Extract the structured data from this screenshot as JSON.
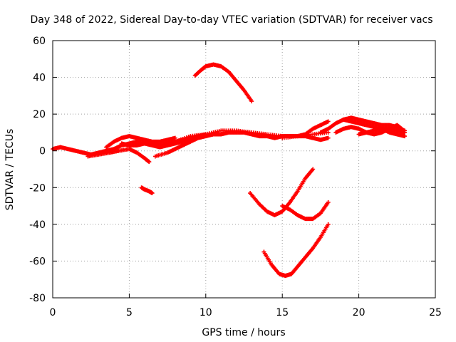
{
  "chart_data": {
    "type": "scatter",
    "title": "Day 348 of 2022, Sidereal Day-to-day VTEC variation (SDTVAR) for receiver vacs",
    "xlabel": "GPS time / hours",
    "ylabel": "SDTVAR / TECUs",
    "xlim": [
      0,
      25
    ],
    "ylim": [
      -80,
      60
    ],
    "xticks": [
      0,
      5,
      10,
      15,
      20,
      25
    ],
    "yticks": [
      -80,
      -60,
      -40,
      -20,
      0,
      20,
      40,
      60
    ],
    "grid": true,
    "marker": "plus",
    "color": "#ff0000",
    "series": [
      {
        "name": "arc-a",
        "x": [
          0.0,
          0.5,
          1.0,
          1.5,
          2.0,
          2.5,
          3.0,
          3.5,
          4.0,
          4.5,
          5.0,
          5.5,
          6.0,
          6.5,
          7.0,
          7.5,
          8.0,
          8.5,
          9.0
        ],
        "y": [
          1,
          2,
          1,
          0,
          -1,
          -2,
          -1,
          0,
          1,
          3,
          4,
          5,
          4,
          3,
          2,
          3,
          4,
          5,
          6
        ]
      },
      {
        "name": "arc-b",
        "x": [
          2.3,
          3.0,
          3.7,
          4.3,
          5.0,
          5.5,
          6.0,
          6.3
        ],
        "y": [
          -3,
          -2,
          -1,
          0,
          1,
          -1,
          -4,
          -6
        ]
      },
      {
        "name": "arc-c",
        "x": [
          3.5,
          4.0,
          4.5,
          5.0,
          5.5,
          6.0,
          6.5,
          7.0,
          7.5,
          8.0
        ],
        "y": [
          2,
          5,
          7,
          8,
          7,
          6,
          5,
          5,
          6,
          7
        ]
      },
      {
        "name": "arc-d",
        "x": [
          4.5,
          5.0,
          5.5,
          6.0,
          6.5,
          7.0,
          7.5,
          8.0,
          8.5,
          9.0,
          9.5,
          10.0
        ],
        "y": [
          4,
          3,
          3,
          4,
          4,
          3,
          4,
          5,
          6,
          7,
          8,
          9
        ]
      },
      {
        "name": "arc-e",
        "x": [
          6.7,
          7.5,
          8.0,
          8.5,
          9.0,
          9.5,
          10.0,
          10.5,
          11.0,
          11.5,
          12.0,
          12.5,
          13.0,
          13.5,
          14.0,
          14.5,
          15.0
        ],
        "y": [
          -3,
          -1,
          1,
          3,
          5,
          7,
          8,
          9,
          9,
          10,
          10,
          10,
          9,
          8,
          8,
          7,
          8
        ]
      },
      {
        "name": "arc-f",
        "x": [
          7.0,
          8.0,
          9.0,
          10.0,
          11.0,
          12.0,
          13.0,
          14.0,
          15.0,
          16.0,
          17.0,
          18.0
        ],
        "y": [
          2,
          5,
          8,
          9,
          11,
          11,
          10,
          9,
          8,
          8,
          9,
          10
        ]
      },
      {
        "name": "arc-g",
        "x": [
          14.5,
          15.0,
          15.5,
          16.0,
          16.5,
          17.0,
          17.5,
          18.0
        ],
        "y": [
          7,
          8,
          8,
          8,
          9,
          12,
          14,
          16
        ]
      },
      {
        "name": "arc-h",
        "x": [
          15.0,
          16.0,
          16.5,
          17.0,
          17.5,
          18.0
        ],
        "y": [
          7,
          8,
          8,
          7,
          6,
          7
        ]
      },
      {
        "name": "arc-i",
        "x": [
          17.5,
          18.0,
          18.5,
          19.0,
          19.5,
          20.0,
          20.5,
          21.0,
          21.5,
          22.0,
          22.5,
          23.0
        ],
        "y": [
          10,
          12,
          15,
          17,
          16,
          15,
          14,
          13,
          12,
          12,
          11,
          10
        ]
      },
      {
        "name": "arc-j",
        "x": [
          18.5,
          19.0,
          19.5,
          20.0,
          20.5,
          21.0,
          21.5,
          22.0,
          22.5,
          22.8
        ],
        "y": [
          10,
          12,
          13,
          12,
          10,
          9,
          10,
          12,
          14,
          12
        ]
      },
      {
        "name": "arc-k",
        "x": [
          19.0,
          19.5,
          20.0,
          20.5,
          21.0,
          21.5,
          22.0,
          22.5,
          23.0
        ],
        "y": [
          17,
          18,
          17,
          16,
          15,
          14,
          14,
          13,
          11
        ]
      },
      {
        "name": "arc-l",
        "x": [
          20.0,
          20.5,
          21.0,
          21.5,
          22.0,
          22.5,
          23.0
        ],
        "y": [
          9,
          10,
          11,
          12,
          10,
          9,
          8
        ]
      },
      {
        "name": "arc-m",
        "x": [
          9.3,
          9.7,
          10.0,
          10.5,
          11.0,
          11.5,
          12.0,
          12.5,
          13.0
        ],
        "y": [
          41,
          44,
          46,
          47,
          46,
          43,
          38,
          33,
          27
        ]
      },
      {
        "name": "arc-n",
        "x": [
          5.8,
          6.0,
          6.3,
          6.5
        ],
        "y": [
          -20,
          -21,
          -22,
          -23
        ]
      },
      {
        "name": "arc-o",
        "x": [
          12.9,
          13.5,
          14.0,
          14.5,
          15.0,
          15.5,
          16.0,
          16.5,
          17.0
        ],
        "y": [
          -23,
          -29,
          -33,
          -35,
          -33,
          -28,
          -22,
          -15,
          -10
        ]
      },
      {
        "name": "arc-p",
        "x": [
          15.0,
          15.5,
          16.0,
          16.5,
          17.0,
          17.5,
          18.0
        ],
        "y": [
          -30,
          -32,
          -35,
          -37,
          -37,
          -34,
          -28
        ]
      },
      {
        "name": "arc-q",
        "x": [
          13.8,
          14.3,
          14.8,
          15.2,
          15.6,
          16.0,
          16.5,
          17.0,
          17.5,
          18.0
        ],
        "y": [
          -55,
          -62,
          -67,
          -68,
          -67,
          -63,
          -58,
          -53,
          -47,
          -40
        ]
      }
    ]
  }
}
